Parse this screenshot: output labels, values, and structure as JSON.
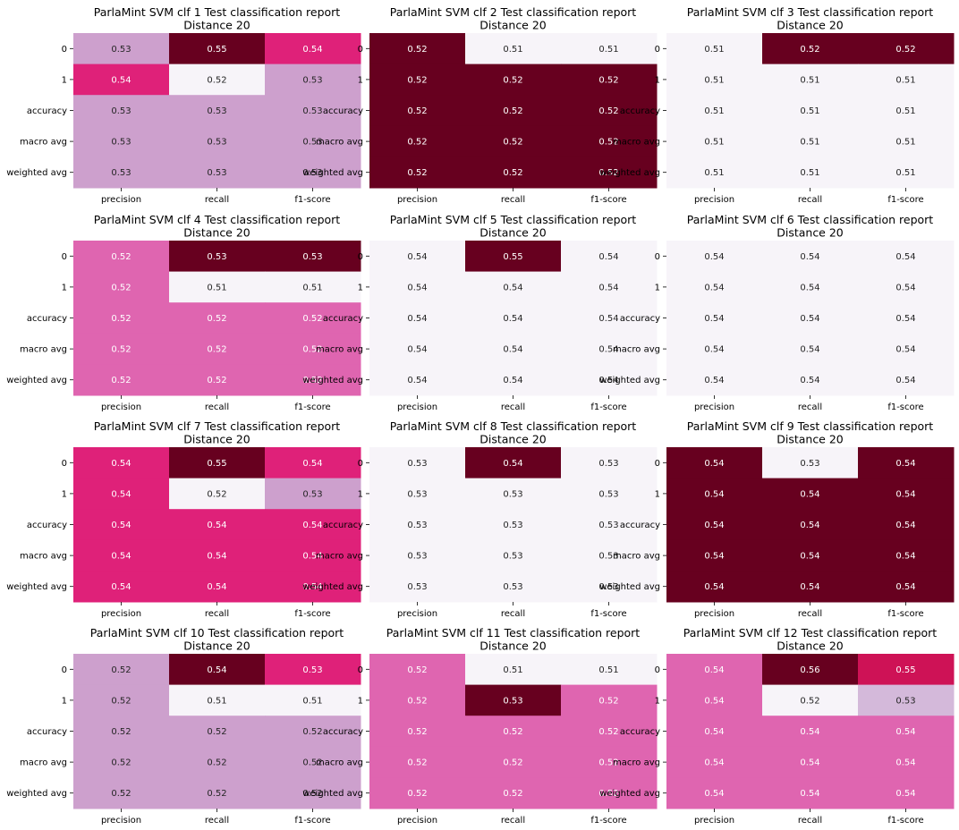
{
  "chart_data": [
    {
      "type": "heatmap",
      "title": "ParlaMint SVM clf 1 Test classification report",
      "subtitle": "Distance 20",
      "rows": [
        "0",
        "1",
        "accuracy",
        "macro avg",
        "weighted avg"
      ],
      "columns": [
        "precision",
        "recall",
        "f1-score"
      ],
      "values": [
        [
          "0.53",
          "0.55",
          "0.54"
        ],
        [
          "0.54",
          "0.52",
          "0.53"
        ],
        [
          "0.53",
          "0.53",
          "0.53"
        ],
        [
          "0.53",
          "0.53",
          "0.53"
        ],
        [
          "0.53",
          "0.53",
          "0.53"
        ]
      ]
    },
    {
      "type": "heatmap",
      "title": "ParlaMint SVM clf 2 Test classification report",
      "subtitle": "Distance 20",
      "rows": [
        "0",
        "1",
        "accuracy",
        "macro avg",
        "weighted avg"
      ],
      "columns": [
        "precision",
        "recall",
        "f1-score"
      ],
      "values": [
        [
          "0.52",
          "0.51",
          "0.51"
        ],
        [
          "0.52",
          "0.52",
          "0.52"
        ],
        [
          "0.52",
          "0.52",
          "0.52"
        ],
        [
          "0.52",
          "0.52",
          "0.52"
        ],
        [
          "0.52",
          "0.52",
          "0.52"
        ]
      ]
    },
    {
      "type": "heatmap",
      "title": "ParlaMint SVM clf 3 Test classification report",
      "subtitle": "Distance 20",
      "rows": [
        "0",
        "1",
        "accuracy",
        "macro avg",
        "weighted avg"
      ],
      "columns": [
        "precision",
        "recall",
        "f1-score"
      ],
      "values": [
        [
          "0.51",
          "0.52",
          "0.52"
        ],
        [
          "0.51",
          "0.51",
          "0.51"
        ],
        [
          "0.51",
          "0.51",
          "0.51"
        ],
        [
          "0.51",
          "0.51",
          "0.51"
        ],
        [
          "0.51",
          "0.51",
          "0.51"
        ]
      ]
    },
    {
      "type": "heatmap",
      "title": "ParlaMint SVM clf 4 Test classification report",
      "subtitle": "Distance 20",
      "rows": [
        "0",
        "1",
        "accuracy",
        "macro avg",
        "weighted avg"
      ],
      "columns": [
        "precision",
        "recall",
        "f1-score"
      ],
      "values": [
        [
          "0.52",
          "0.53",
          "0.53"
        ],
        [
          "0.52",
          "0.51",
          "0.51"
        ],
        [
          "0.52",
          "0.52",
          "0.52"
        ],
        [
          "0.52",
          "0.52",
          "0.52"
        ],
        [
          "0.52",
          "0.52",
          "0.52"
        ]
      ]
    },
    {
      "type": "heatmap",
      "title": "ParlaMint SVM clf 5 Test classification report",
      "subtitle": "Distance 20",
      "rows": [
        "0",
        "1",
        "accuracy",
        "macro avg",
        "weighted avg"
      ],
      "columns": [
        "precision",
        "recall",
        "f1-score"
      ],
      "values": [
        [
          "0.54",
          "0.55",
          "0.54"
        ],
        [
          "0.54",
          "0.54",
          "0.54"
        ],
        [
          "0.54",
          "0.54",
          "0.54"
        ],
        [
          "0.54",
          "0.54",
          "0.54"
        ],
        [
          "0.54",
          "0.54",
          "0.54"
        ]
      ]
    },
    {
      "type": "heatmap",
      "title": "ParlaMint SVM clf 6 Test classification report",
      "subtitle": "Distance 20",
      "rows": [
        "0",
        "1",
        "accuracy",
        "macro avg",
        "weighted avg"
      ],
      "columns": [
        "precision",
        "recall",
        "f1-score"
      ],
      "values": [
        [
          "0.54",
          "0.54",
          "0.54"
        ],
        [
          "0.54",
          "0.54",
          "0.54"
        ],
        [
          "0.54",
          "0.54",
          "0.54"
        ],
        [
          "0.54",
          "0.54",
          "0.54"
        ],
        [
          "0.54",
          "0.54",
          "0.54"
        ]
      ]
    },
    {
      "type": "heatmap",
      "title": "ParlaMint SVM clf 7 Test classification report",
      "subtitle": "Distance 20",
      "rows": [
        "0",
        "1",
        "accuracy",
        "macro avg",
        "weighted avg"
      ],
      "columns": [
        "precision",
        "recall",
        "f1-score"
      ],
      "values": [
        [
          "0.54",
          "0.55",
          "0.54"
        ],
        [
          "0.54",
          "0.52",
          "0.53"
        ],
        [
          "0.54",
          "0.54",
          "0.54"
        ],
        [
          "0.54",
          "0.54",
          "0.54"
        ],
        [
          "0.54",
          "0.54",
          "0.54"
        ]
      ]
    },
    {
      "type": "heatmap",
      "title": "ParlaMint SVM clf 8 Test classification report",
      "subtitle": "Distance 20",
      "rows": [
        "0",
        "1",
        "accuracy",
        "macro avg",
        "weighted avg"
      ],
      "columns": [
        "precision",
        "recall",
        "f1-score"
      ],
      "values": [
        [
          "0.53",
          "0.54",
          "0.53"
        ],
        [
          "0.53",
          "0.53",
          "0.53"
        ],
        [
          "0.53",
          "0.53",
          "0.53"
        ],
        [
          "0.53",
          "0.53",
          "0.53"
        ],
        [
          "0.53",
          "0.53",
          "0.53"
        ]
      ]
    },
    {
      "type": "heatmap",
      "title": "ParlaMint SVM clf 9 Test classification report",
      "subtitle": "Distance 20",
      "rows": [
        "0",
        "1",
        "accuracy",
        "macro avg",
        "weighted avg"
      ],
      "columns": [
        "precision",
        "recall",
        "f1-score"
      ],
      "values": [
        [
          "0.54",
          "0.53",
          "0.54"
        ],
        [
          "0.54",
          "0.54",
          "0.54"
        ],
        [
          "0.54",
          "0.54",
          "0.54"
        ],
        [
          "0.54",
          "0.54",
          "0.54"
        ],
        [
          "0.54",
          "0.54",
          "0.54"
        ]
      ]
    },
    {
      "type": "heatmap",
      "title": "ParlaMint SVM clf 10 Test classification report",
      "subtitle": "Distance 20",
      "rows": [
        "0",
        "1",
        "accuracy",
        "macro avg",
        "weighted avg"
      ],
      "columns": [
        "precision",
        "recall",
        "f1-score"
      ],
      "values": [
        [
          "0.52",
          "0.54",
          "0.53"
        ],
        [
          "0.52",
          "0.51",
          "0.51"
        ],
        [
          "0.52",
          "0.52",
          "0.52"
        ],
        [
          "0.52",
          "0.52",
          "0.52"
        ],
        [
          "0.52",
          "0.52",
          "0.52"
        ]
      ]
    },
    {
      "type": "heatmap",
      "title": "ParlaMint SVM clf 11 Test classification report",
      "subtitle": "Distance 20",
      "rows": [
        "0",
        "1",
        "accuracy",
        "macro avg",
        "weighted avg"
      ],
      "columns": [
        "precision",
        "recall",
        "f1-score"
      ],
      "values": [
        [
          "0.52",
          "0.51",
          "0.51"
        ],
        [
          "0.52",
          "0.53",
          "0.52"
        ],
        [
          "0.52",
          "0.52",
          "0.52"
        ],
        [
          "0.52",
          "0.52",
          "0.52"
        ],
        [
          "0.52",
          "0.52",
          "0.52"
        ]
      ]
    },
    {
      "type": "heatmap",
      "title": "ParlaMint SVM clf 12 Test classification report",
      "subtitle": "Distance 20",
      "rows": [
        "0",
        "1",
        "accuracy",
        "macro avg",
        "weighted avg"
      ],
      "columns": [
        "precision",
        "recall",
        "f1-score"
      ],
      "values": [
        [
          "0.54",
          "0.56",
          "0.55"
        ],
        [
          "0.54",
          "0.52",
          "0.53"
        ],
        [
          "0.54",
          "0.54",
          "0.54"
        ],
        [
          "0.54",
          "0.54",
          "0.54"
        ],
        [
          "0.54",
          "0.54",
          "0.54"
        ]
      ]
    }
  ]
}
